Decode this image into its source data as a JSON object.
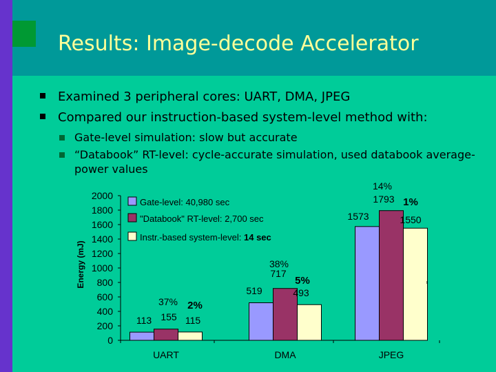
{
  "slide": {
    "title": "Results: Image-decode Accelerator",
    "bullets": [
      "Examined 3 peripheral cores: UART, DMA, JPEG",
      "Compared our instruction-based system-level method with:"
    ],
    "sub_bullets": [
      "Gate-level simulation: slow but accurate",
      "“Databook” RT-level: cycle-accurate simulation, used databook average-",
      "power values"
    ]
  },
  "chart_data": {
    "type": "bar",
    "ylabel": "Energy (mJ)",
    "ylim": [
      0,
      2000
    ],
    "yticks": [
      "2000",
      "1800",
      "1600",
      "1400",
      "1200",
      "1000",
      "800",
      "600",
      "400",
      "200",
      "0"
    ],
    "categories": [
      "UART",
      "DMA",
      "JPEG"
    ],
    "series": [
      {
        "name": "Gate-level: 40,980 sec",
        "values": [
          113,
          519,
          1573
        ],
        "labels": [
          "113",
          "519",
          "1573"
        ],
        "color": "#9999ff"
      },
      {
        "name": "\"Databook\" RT-level: 2,700 sec",
        "values": [
          155,
          717,
          1793
        ],
        "labels": [
          "155",
          "717",
          "1793"
        ],
        "color": "#993366"
      },
      {
        "name": "Instr.-based system-level: ",
        "name_bold": "14 sec",
        "values": [
          115,
          493,
          1550
        ],
        "labels": [
          "115",
          "493",
          "1550"
        ],
        "color": "#ffffcc"
      }
    ],
    "annotations": {
      "databook_error": [
        "37%",
        "38%",
        "14%"
      ],
      "instr_error": [
        "2%",
        "5%",
        "1%"
      ]
    },
    "colors": {
      "plot_bg": "#00cc99",
      "bar_stroke": "#000000"
    }
  }
}
